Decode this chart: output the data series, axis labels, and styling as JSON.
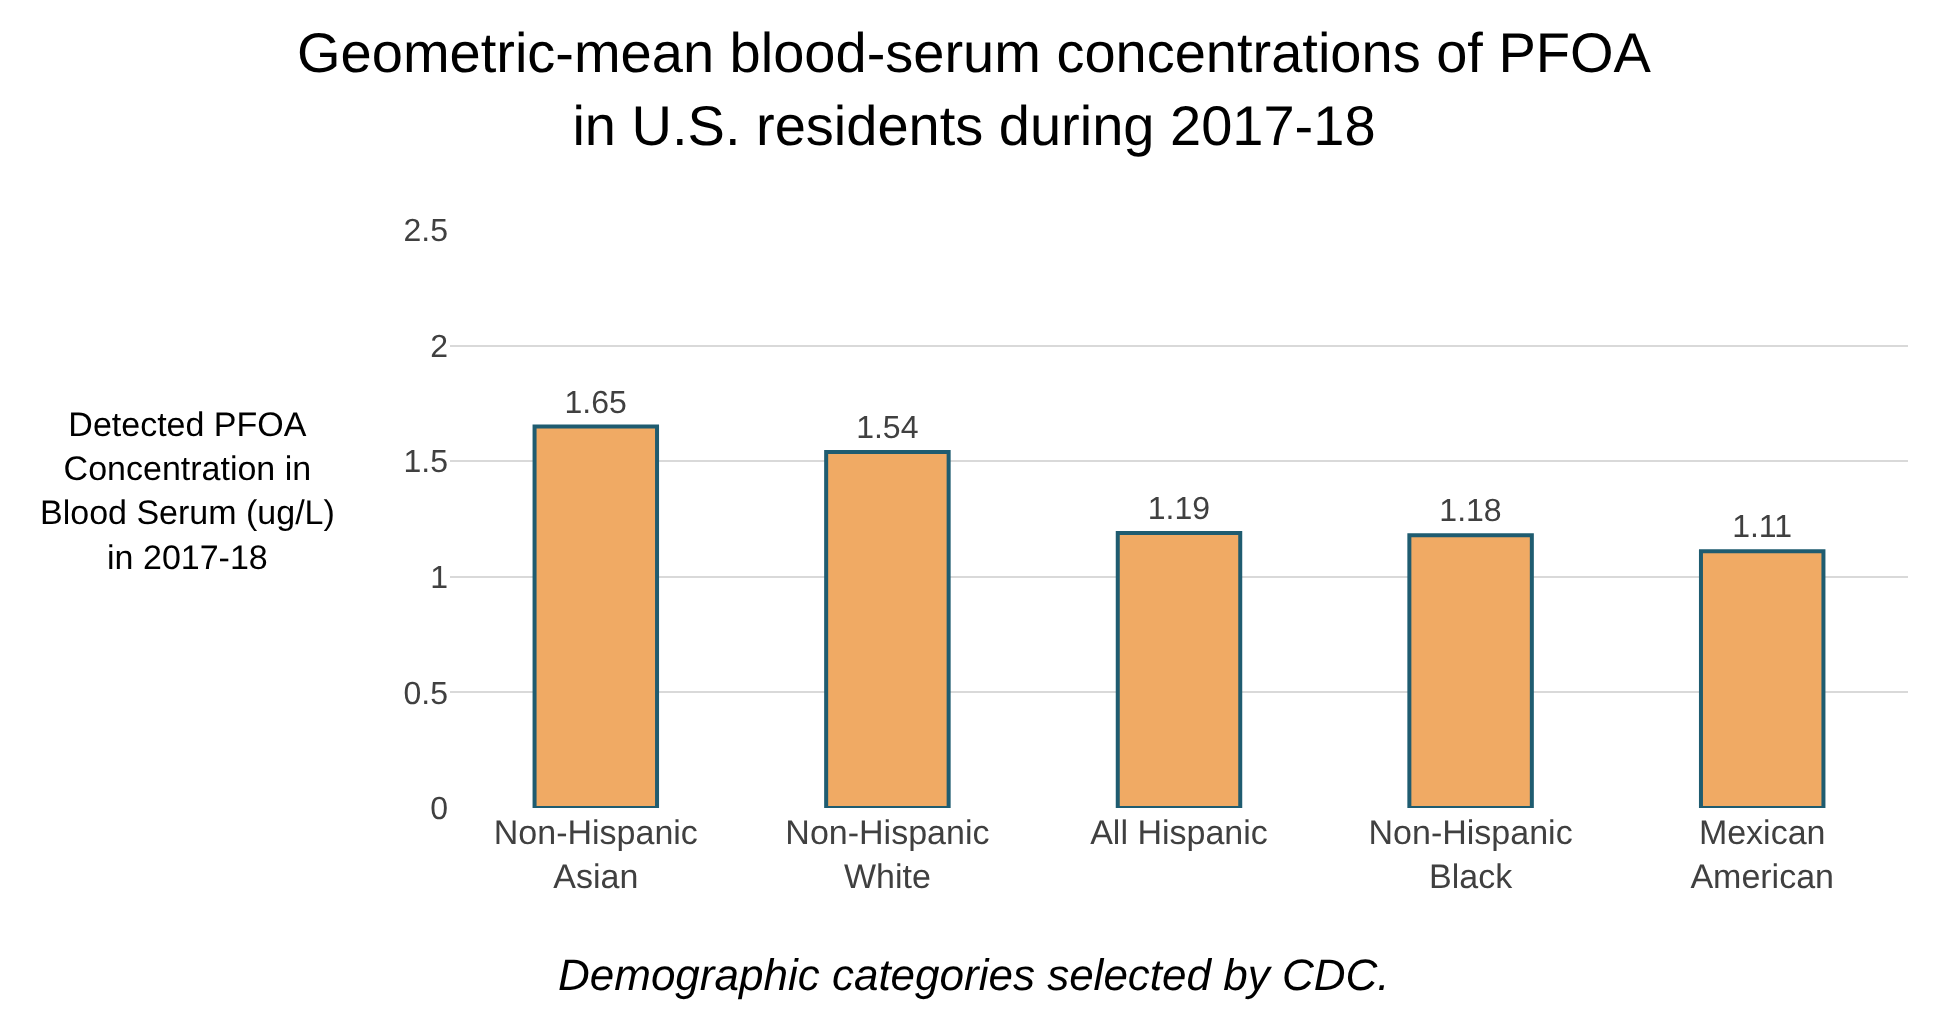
{
  "chart_data": {
    "type": "bar",
    "title": "Geometric-mean blood-serum concentrations of PFOA in U.S. residents during 2017-18",
    "ylabel": "Detected PFOA Concentration in Blood Serum (ug/L) in 2017-18",
    "categories": [
      "Non-Hispanic Asian",
      "Non-Hispanic White",
      "All Hispanic",
      "Non-Hispanic Black",
      "Mexican American"
    ],
    "values": [
      1.65,
      1.54,
      1.19,
      1.18,
      1.11
    ],
    "color": "#f0aa64",
    "ylim": [
      0,
      2.5
    ],
    "yticks": [
      0,
      0.5,
      1,
      1.5,
      2,
      2.5
    ],
    "grid": "y",
    "data_labels": true,
    "annotations": [
      "Demographic categories selected by CDC."
    ]
  }
}
